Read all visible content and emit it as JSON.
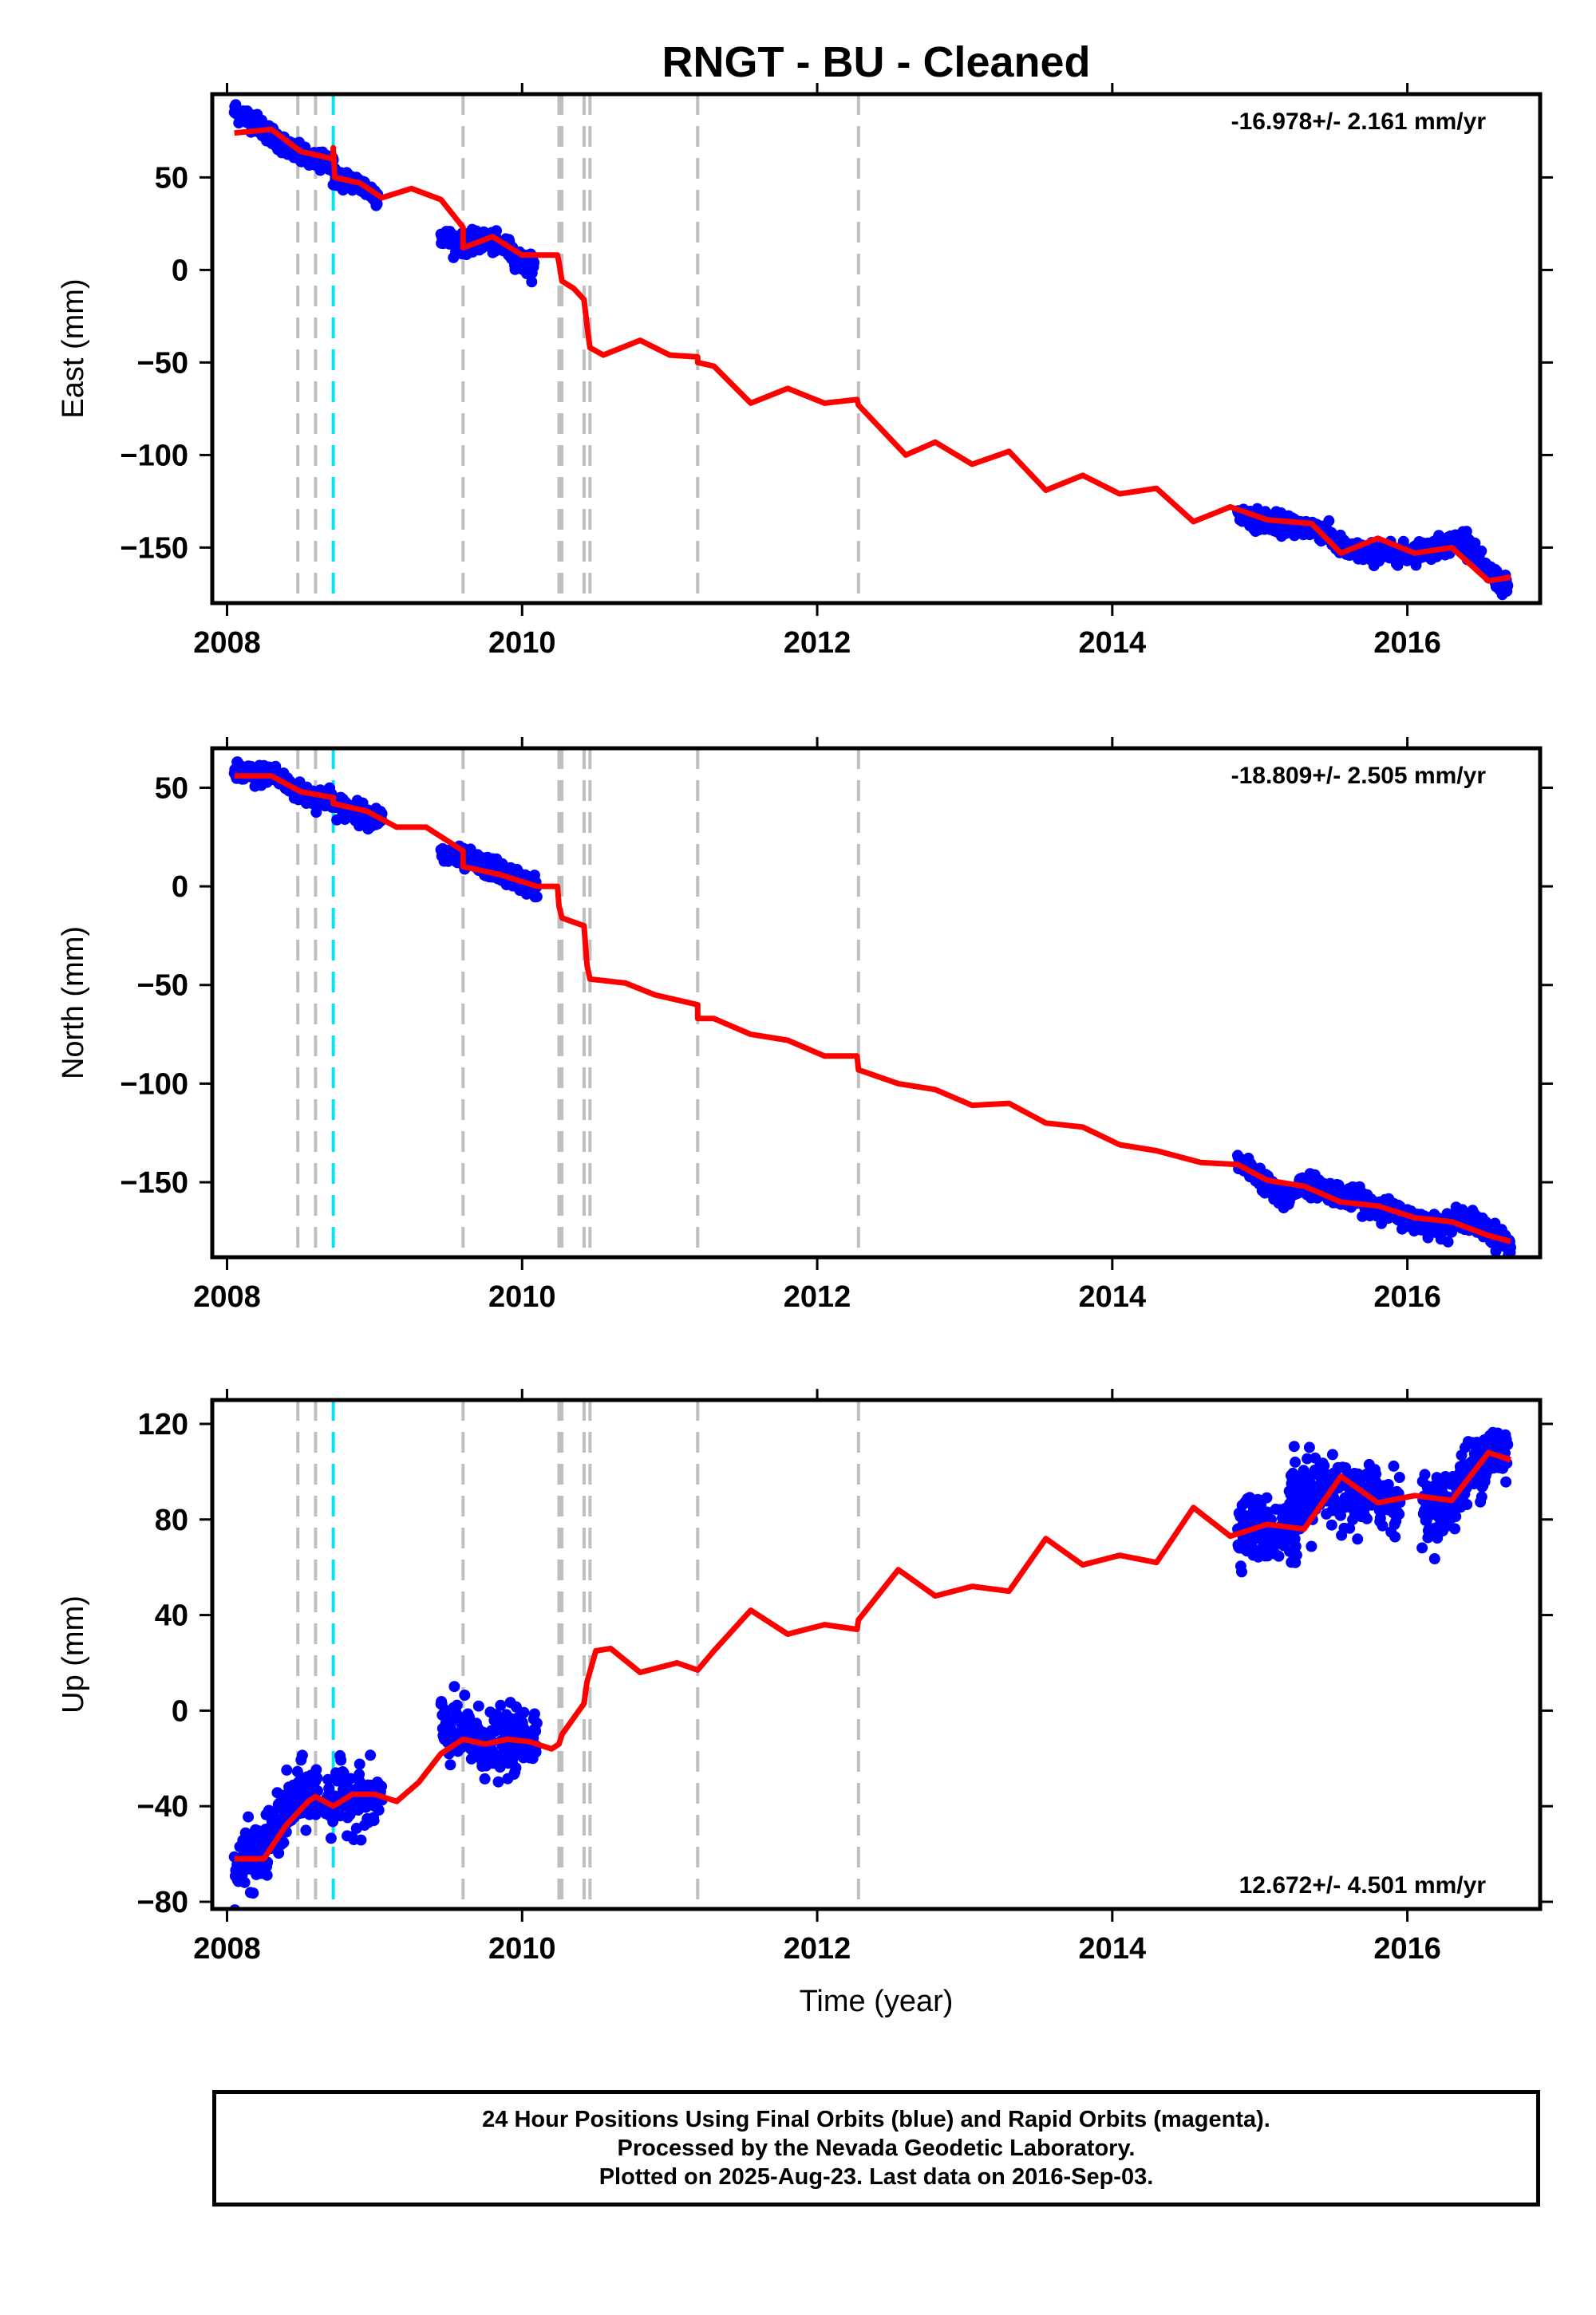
{
  "title": "RNGT  - BU - Cleaned",
  "xlabel": "Time (year)",
  "footer": {
    "line1": "24 Hour Positions Using Final Orbits (blue) and Rapid Orbits (magenta).",
    "line2": "Processed by the Nevada Geodetic Laboratory.",
    "line3": "Plotted on 2025-Aug-23. Last data on 2016-Sep-03."
  },
  "colors": {
    "final_orbits": "#0000ff",
    "model": "#ff0000",
    "event_line": "#bfbfbf",
    "equipment_change": "#00e5ee"
  },
  "chart_data": [
    {
      "type": "scatter",
      "component": "East",
      "ylabel": "East (mm)",
      "rate": "-16.978+/- 2.161 mm/yr",
      "rate_position": "top-right",
      "xlim": [
        2007.9,
        2016.9
      ],
      "ylim": [
        -180,
        95
      ],
      "xticks": [
        2008,
        2010,
        2012,
        2014,
        2016
      ],
      "yticks": [
        50,
        0,
        -50,
        -100,
        -150
      ],
      "event_lines_gray": [
        2008.48,
        2008.6,
        2009.6,
        2010.25,
        2010.27,
        2010.42,
        2010.46,
        2011.19,
        2012.28
      ],
      "event_lines_cyan": [
        2008.72
      ],
      "data_segments": [
        {
          "start": 2008.05,
          "end": 2008.72,
          "points": [
            [
              2008.05,
              86
            ],
            [
              2008.15,
              82
            ],
            [
              2008.25,
              76
            ],
            [
              2008.35,
              70
            ],
            [
              2008.45,
              64
            ],
            [
              2008.55,
              60
            ],
            [
              2008.65,
              58
            ],
            [
              2008.72,
              60
            ]
          ]
        },
        {
          "start": 2008.72,
          "end": 2009.02,
          "points": [
            [
              2008.72,
              50
            ],
            [
              2008.8,
              49
            ],
            [
              2008.9,
              46
            ],
            [
              2009.02,
              40
            ]
          ]
        },
        {
          "start": 2009.45,
          "end": 2010.08,
          "points": [
            [
              2009.45,
              18
            ],
            [
              2009.6,
              14
            ],
            [
              2009.75,
              16
            ],
            [
              2009.9,
              12
            ],
            [
              2010.0,
              4
            ],
            [
              2010.08,
              2
            ]
          ]
        },
        {
          "start": 2014.85,
          "end": 2016.68,
          "points": [
            [
              2014.85,
              -132
            ],
            [
              2015.0,
              -135
            ],
            [
              2015.2,
              -138
            ],
            [
              2015.4,
              -140
            ],
            [
              2015.6,
              -152
            ],
            [
              2015.8,
              -153
            ],
            [
              2016.0,
              -153
            ],
            [
              2016.2,
              -150
            ],
            [
              2016.4,
              -145
            ],
            [
              2016.5,
              -160
            ],
            [
              2016.68,
              -172
            ]
          ]
        }
      ],
      "model_curve": [
        [
          2008.05,
          74
        ],
        [
          2008.3,
          76
        ],
        [
          2008.5,
          64
        ],
        [
          2008.72,
          60
        ],
        [
          2008.72,
          66
        ],
        [
          2008.73,
          50
        ],
        [
          2008.9,
          47
        ],
        [
          2009.05,
          39
        ],
        [
          2009.25,
          44
        ],
        [
          2009.45,
          38
        ],
        [
          2009.6,
          23
        ],
        [
          2009.6,
          12
        ],
        [
          2009.8,
          18
        ],
        [
          2010.0,
          8
        ],
        [
          2010.24,
          8
        ],
        [
          2010.25,
          4
        ],
        [
          2010.27,
          -6
        ],
        [
          2010.35,
          -10
        ],
        [
          2010.42,
          -16
        ],
        [
          2010.44,
          -30
        ],
        [
          2010.46,
          -42
        ],
        [
          2010.55,
          -46
        ],
        [
          2010.8,
          -38
        ],
        [
          2011.0,
          -46
        ],
        [
          2011.19,
          -47
        ],
        [
          2011.19,
          -50
        ],
        [
          2011.3,
          -52
        ],
        [
          2011.55,
          -72
        ],
        [
          2011.8,
          -64
        ],
        [
          2012.05,
          -72
        ],
        [
          2012.27,
          -70
        ],
        [
          2012.28,
          -73
        ],
        [
          2012.6,
          -100
        ],
        [
          2012.8,
          -93
        ],
        [
          2013.05,
          -105
        ],
        [
          2013.3,
          -98
        ],
        [
          2013.55,
          -119
        ],
        [
          2013.8,
          -111
        ],
        [
          2014.05,
          -121
        ],
        [
          2014.3,
          -118
        ],
        [
          2014.55,
          -136
        ],
        [
          2014.8,
          -128
        ],
        [
          2015.05,
          -135
        ],
        [
          2015.35,
          -137
        ],
        [
          2015.55,
          -153
        ],
        [
          2015.8,
          -145
        ],
        [
          2016.05,
          -153
        ],
        [
          2016.3,
          -150
        ],
        [
          2016.55,
          -168
        ],
        [
          2016.7,
          -166
        ]
      ]
    },
    {
      "type": "scatter",
      "component": "North",
      "ylabel": "North (mm)",
      "rate": "-18.809+/- 2.505 mm/yr",
      "rate_position": "top-right",
      "xlim": [
        2007.9,
        2016.9
      ],
      "ylim": [
        -188,
        70
      ],
      "xticks": [
        2008,
        2010,
        2012,
        2014,
        2016
      ],
      "yticks": [
        50,
        0,
        -50,
        -100,
        -150
      ],
      "event_lines_gray": [
        2008.48,
        2008.6,
        2009.6,
        2010.25,
        2010.27,
        2010.42,
        2010.46,
        2011.19,
        2012.28
      ],
      "event_lines_cyan": [
        2008.72
      ],
      "data_segments": [
        {
          "start": 2008.05,
          "end": 2008.72,
          "points": [
            [
              2008.05,
              58
            ],
            [
              2008.2,
              56
            ],
            [
              2008.3,
              58
            ],
            [
              2008.4,
              52
            ],
            [
              2008.5,
              47
            ],
            [
              2008.6,
              45
            ],
            [
              2008.72,
              45
            ]
          ]
        },
        {
          "start": 2008.72,
          "end": 2009.05,
          "points": [
            [
              2008.72,
              42
            ],
            [
              2008.85,
              38
            ],
            [
              2009.05,
              34
            ]
          ]
        },
        {
          "start": 2009.45,
          "end": 2010.1,
          "points": [
            [
              2009.45,
              16
            ],
            [
              2009.6,
              14
            ],
            [
              2009.8,
              9
            ],
            [
              2009.95,
              4
            ],
            [
              2010.1,
              0
            ]
          ]
        },
        {
          "start": 2014.85,
          "end": 2016.7,
          "points": [
            [
              2014.85,
              -140
            ],
            [
              2015.0,
              -147
            ],
            [
              2015.15,
              -160
            ],
            [
              2015.3,
              -150
            ],
            [
              2015.5,
              -155
            ],
            [
              2015.8,
              -162
            ],
            [
              2016.0,
              -168
            ],
            [
              2016.2,
              -172
            ],
            [
              2016.4,
              -168
            ],
            [
              2016.55,
              -175
            ],
            [
              2016.7,
              -182
            ]
          ]
        }
      ],
      "model_curve": [
        [
          2008.05,
          56
        ],
        [
          2008.3,
          56
        ],
        [
          2008.5,
          48
        ],
        [
          2008.72,
          45
        ],
        [
          2008.72,
          42
        ],
        [
          2008.95,
          38
        ],
        [
          2009.15,
          30
        ],
        [
          2009.35,
          30
        ],
        [
          2009.6,
          18
        ],
        [
          2009.6,
          10
        ],
        [
          2009.85,
          6
        ],
        [
          2010.1,
          0
        ],
        [
          2010.24,
          0
        ],
        [
          2010.25,
          -10
        ],
        [
          2010.27,
          -16
        ],
        [
          2010.42,
          -20
        ],
        [
          2010.44,
          -40
        ],
        [
          2010.46,
          -47
        ],
        [
          2010.7,
          -49
        ],
        [
          2010.9,
          -55
        ],
        [
          2011.19,
          -60
        ],
        [
          2011.19,
          -67
        ],
        [
          2011.3,
          -67
        ],
        [
          2011.55,
          -75
        ],
        [
          2011.8,
          -78
        ],
        [
          2012.05,
          -86
        ],
        [
          2012.27,
          -86
        ],
        [
          2012.28,
          -93
        ],
        [
          2012.55,
          -100
        ],
        [
          2012.8,
          -103
        ],
        [
          2013.05,
          -111
        ],
        [
          2013.3,
          -110
        ],
        [
          2013.55,
          -120
        ],
        [
          2013.8,
          -122
        ],
        [
          2014.05,
          -131
        ],
        [
          2014.3,
          -134
        ],
        [
          2014.6,
          -140
        ],
        [
          2014.85,
          -141
        ],
        [
          2015.05,
          -149
        ],
        [
          2015.3,
          -152
        ],
        [
          2015.55,
          -160
        ],
        [
          2015.8,
          -162
        ],
        [
          2016.05,
          -168
        ],
        [
          2016.3,
          -170
        ],
        [
          2016.55,
          -177
        ],
        [
          2016.7,
          -180
        ]
      ]
    },
    {
      "type": "scatter",
      "component": "Up",
      "ylabel": "Up (mm)",
      "rate": "12.672+/- 4.501 mm/yr",
      "rate_position": "bottom-right",
      "xlim": [
        2007.9,
        2016.9
      ],
      "ylim": [
        -83,
        130
      ],
      "xticks": [
        2008,
        2010,
        2012,
        2014,
        2016
      ],
      "yticks": [
        120,
        80,
        40,
        0,
        -40,
        -80
      ],
      "event_lines_gray": [
        2008.48,
        2008.6,
        2009.6,
        2010.25,
        2010.27,
        2010.42,
        2010.46,
        2011.19,
        2012.28
      ],
      "event_lines_cyan": [
        2008.72
      ],
      "data_segments": [
        {
          "start": 2008.05,
          "end": 2008.62,
          "points": [
            [
              2008.05,
              -68
            ],
            [
              2008.15,
              -62
            ],
            [
              2008.25,
              -58
            ],
            [
              2008.35,
              -48
            ],
            [
              2008.45,
              -38
            ],
            [
              2008.55,
              -34
            ],
            [
              2008.62,
              -36
            ]
          ]
        },
        {
          "start": 2008.66,
          "end": 2009.05,
          "points": [
            [
              2008.66,
              -38
            ],
            [
              2008.8,
              -36
            ],
            [
              2008.95,
              -38
            ],
            [
              2009.05,
              -36
            ]
          ]
        },
        {
          "start": 2009.45,
          "end": 2010.1,
          "points": [
            [
              2009.45,
              -8
            ],
            [
              2009.6,
              -10
            ],
            [
              2009.75,
              -14
            ],
            [
              2009.9,
              -14
            ],
            [
              2010.1,
              -10
            ]
          ]
        },
        {
          "start": 2014.85,
          "end": 2015.35,
          "points": [
            [
              2014.85,
              78
            ],
            [
              2015.0,
              76
            ],
            [
              2015.15,
              74
            ],
            [
              2015.35,
              84
            ]
          ]
        },
        {
          "start": 2015.2,
          "end": 2015.95,
          "points": [
            [
              2015.2,
              92
            ],
            [
              2015.4,
              92
            ],
            [
              2015.6,
              88
            ],
            [
              2015.8,
              90
            ],
            [
              2015.95,
              88
            ]
          ]
        },
        {
          "start": 2016.1,
          "end": 2016.68,
          "points": [
            [
              2016.1,
              84
            ],
            [
              2016.25,
              86
            ],
            [
              2016.4,
              98
            ],
            [
              2016.55,
              108
            ],
            [
              2016.68,
              108
            ]
          ]
        }
      ],
      "model_curve": [
        [
          2008.05,
          -62
        ],
        [
          2008.25,
          -62
        ],
        [
          2008.4,
          -48
        ],
        [
          2008.55,
          -38
        ],
        [
          2008.6,
          -36
        ],
        [
          2008.72,
          -40
        ],
        [
          2008.85,
          -35
        ],
        [
          2009.0,
          -35
        ],
        [
          2009.15,
          -38
        ],
        [
          2009.3,
          -30
        ],
        [
          2009.45,
          -18
        ],
        [
          2009.6,
          -12
        ],
        [
          2009.75,
          -14
        ],
        [
          2009.9,
          -12
        ],
        [
          2010.05,
          -13
        ],
        [
          2010.2,
          -16
        ],
        [
          2010.25,
          -14
        ],
        [
          2010.27,
          -10
        ],
        [
          2010.42,
          3
        ],
        [
          2010.44,
          12
        ],
        [
          2010.5,
          25
        ],
        [
          2010.6,
          26
        ],
        [
          2010.8,
          16
        ],
        [
          2011.05,
          20
        ],
        [
          2011.19,
          17
        ],
        [
          2011.3,
          25
        ],
        [
          2011.55,
          42
        ],
        [
          2011.8,
          32
        ],
        [
          2012.05,
          36
        ],
        [
          2012.27,
          34
        ],
        [
          2012.28,
          38
        ],
        [
          2012.55,
          59
        ],
        [
          2012.8,
          48
        ],
        [
          2013.05,
          52
        ],
        [
          2013.3,
          50
        ],
        [
          2013.55,
          72
        ],
        [
          2013.8,
          61
        ],
        [
          2014.05,
          65
        ],
        [
          2014.3,
          62
        ],
        [
          2014.55,
          85
        ],
        [
          2014.8,
          73
        ],
        [
          2015.05,
          78
        ],
        [
          2015.3,
          76
        ],
        [
          2015.55,
          98
        ],
        [
          2015.8,
          87
        ],
        [
          2016.05,
          90
        ],
        [
          2016.3,
          88
        ],
        [
          2016.55,
          108
        ],
        [
          2016.7,
          105
        ]
      ]
    }
  ]
}
